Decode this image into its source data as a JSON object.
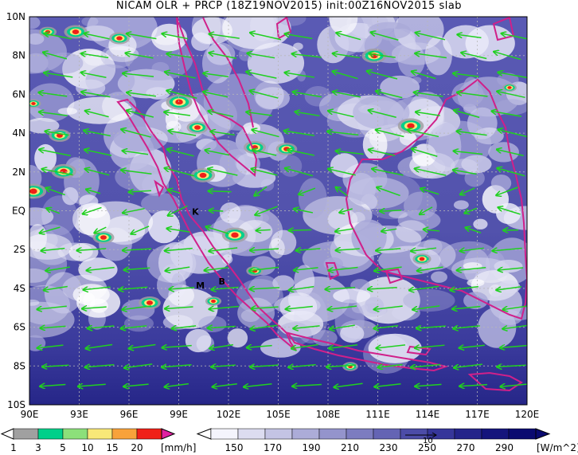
{
  "title": "NICAM OLR + PRCP (18Z19NOV2015) init:00Z16NOV2015 slab",
  "lat_labels": [
    "10N",
    "8N",
    "6N",
    "4N",
    "2N",
    "EQ",
    "2S",
    "4S",
    "6S",
    "8S",
    "10S"
  ],
  "lon_labels": [
    "90E",
    "93E",
    "96E",
    "99E",
    "102E",
    "105E",
    "108E",
    "111E",
    "114E",
    "117E",
    "120E"
  ],
  "map_markers": [
    {
      "label": "K",
      "lon": 100.0,
      "lat": -0.2
    },
    {
      "label": "M",
      "lon": 100.3,
      "lat": -4.0
    },
    {
      "label": "B",
      "lon": 101.6,
      "lat": -3.8
    }
  ],
  "precip_colorbar": {
    "ticks": [
      "1",
      "3",
      "5",
      "10",
      "15",
      "20"
    ],
    "unit": "[mm/h]",
    "colors": [
      "#a0a0a0",
      "#00d08a",
      "#8ce07a",
      "#f8e878",
      "#f8a23a",
      "#f02018"
    ]
  },
  "olr_colorbar": {
    "ticks": [
      "150",
      "170",
      "190",
      "210",
      "230",
      "250",
      "270",
      "290"
    ],
    "unit": "[W/m^2]",
    "vector_ref": "10",
    "colors": [
      "#f4f4fc",
      "#dcdcf0",
      "#c4c4e4",
      "#acacd8",
      "#9494cc",
      "#7c7cc0",
      "#6464b4",
      "#4c4ca8",
      "#36369a",
      "#24248a",
      "#14147c",
      "#0a0a70"
    ]
  },
  "colors": {
    "coastline": "#d0208a",
    "wind_vector": "#20d020",
    "background_olr": "#4a4aa8"
  }
}
